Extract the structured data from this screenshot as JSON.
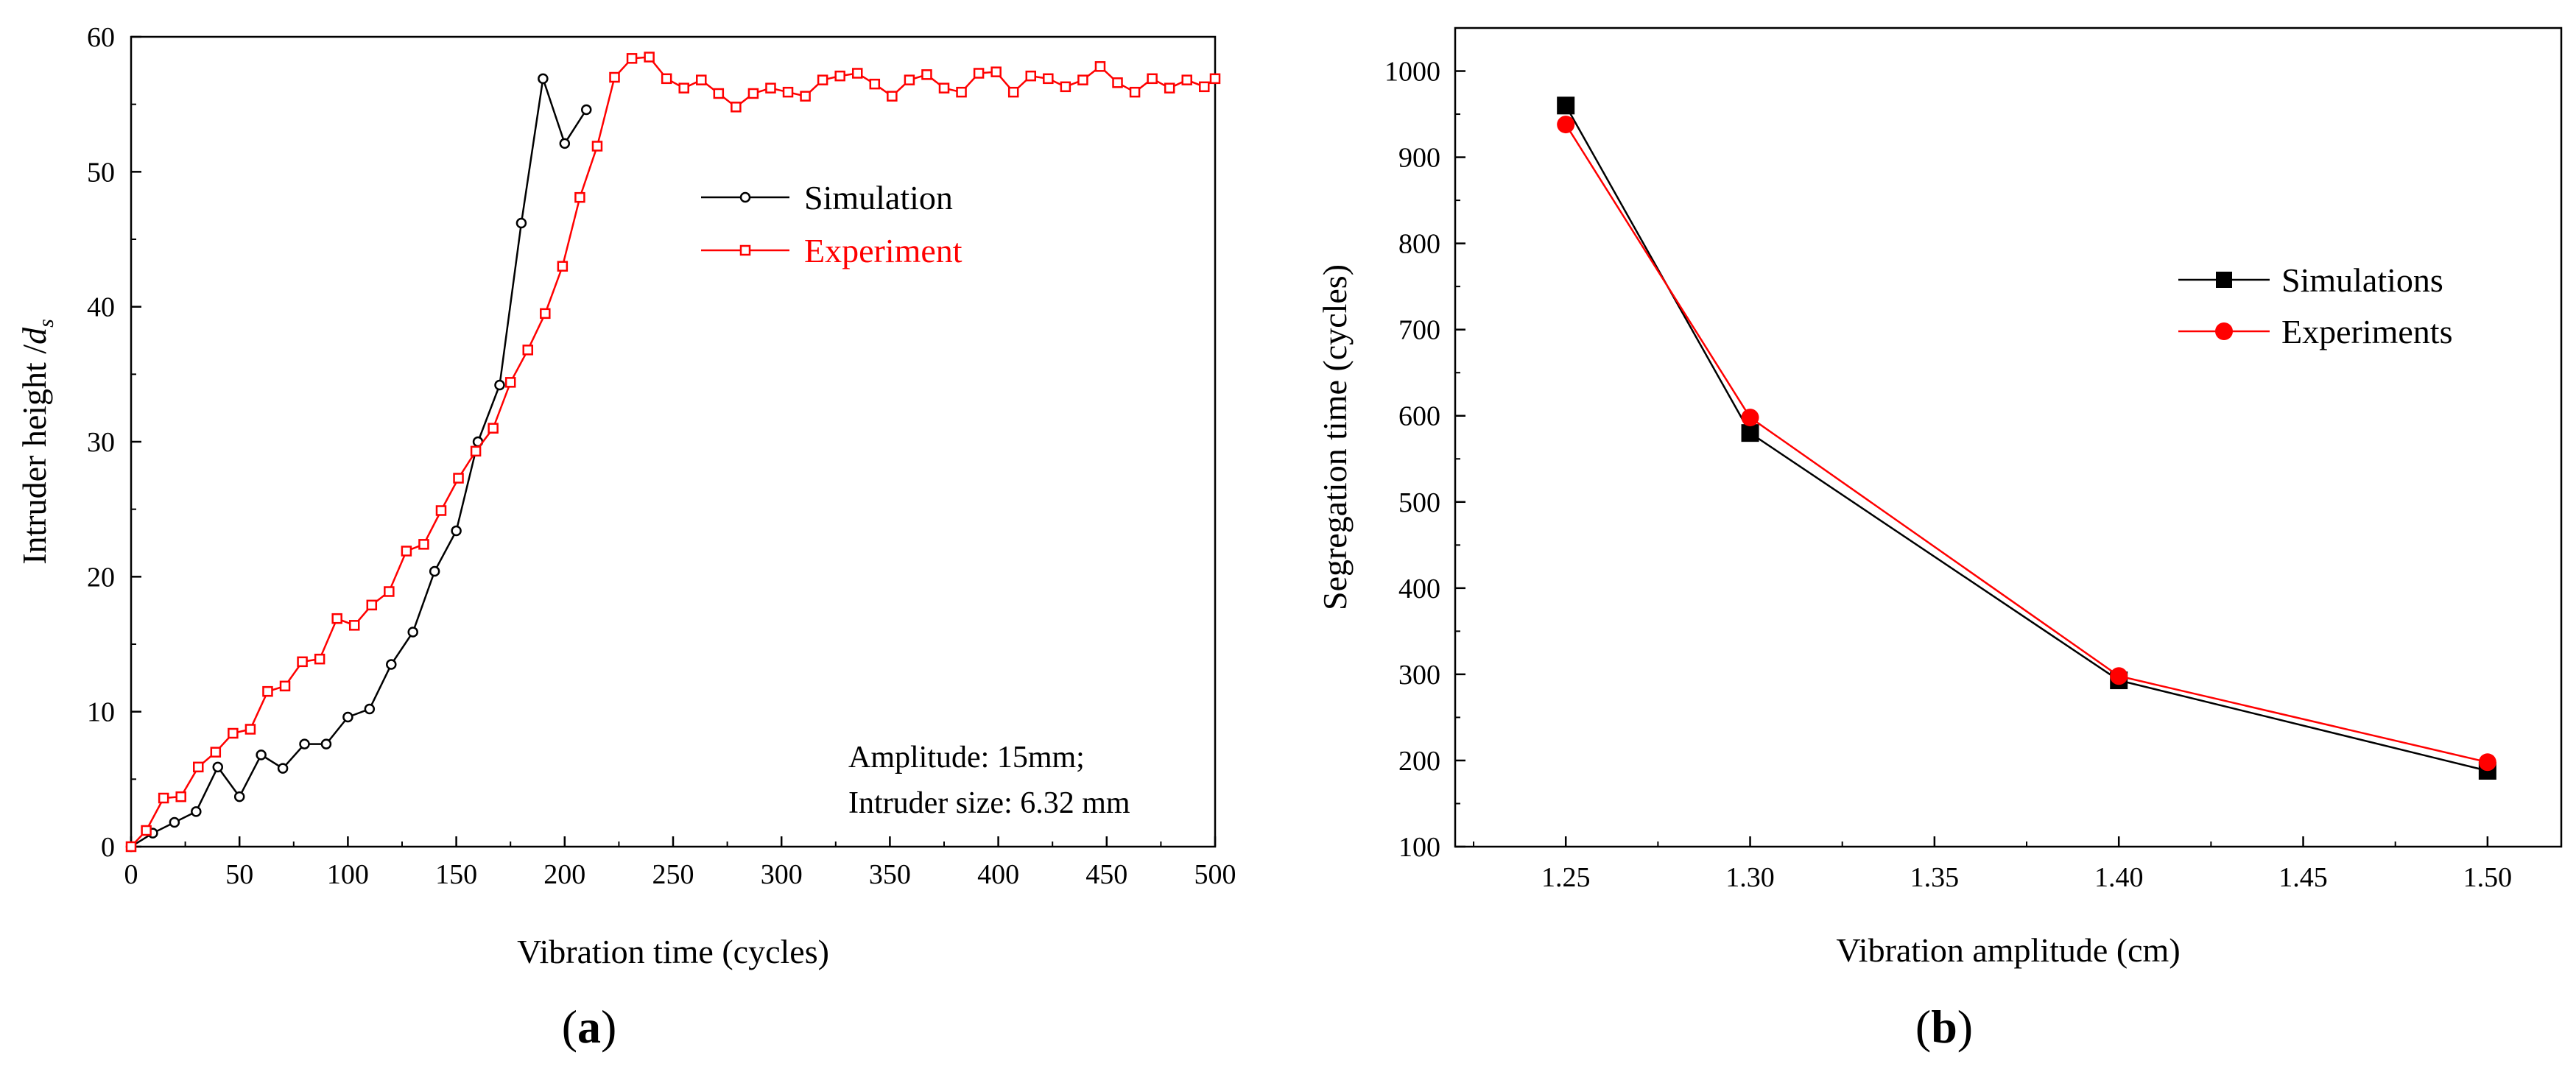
{
  "chart_data": [
    {
      "type": "line",
      "panel_label": "a",
      "xlabel": "Vibration time (cycles)",
      "ylabel": "Intruder height /",
      "ylabel_symbol": "d",
      "ylabel_subscript": "s",
      "xlim": [
        0,
        500
      ],
      "ylim": [
        0,
        60
      ],
      "xticks": [
        0,
        50,
        100,
        150,
        200,
        250,
        300,
        350,
        400,
        450,
        500
      ],
      "yticks": [
        0,
        10,
        20,
        30,
        40,
        50,
        60
      ],
      "legend_position": "upper-right",
      "annotation": [
        "Amplitude: 15mm;",
        "Intruder size: 6.32 mm"
      ],
      "series": [
        {
          "name": "Simulation",
          "color": "#000000",
          "marker": "open-circle",
          "x": [
            0,
            10,
            20,
            30,
            40,
            50,
            60,
            70,
            80,
            90,
            100,
            110,
            120,
            130,
            140,
            150,
            160,
            170,
            180,
            190,
            200,
            210
          ],
          "y": [
            0,
            1.0,
            1.8,
            2.6,
            5.9,
            3.7,
            6.8,
            5.8,
            7.6,
            7.6,
            9.6,
            10.2,
            13.5,
            15.9,
            20.4,
            23.4,
            30.0,
            34.2,
            46.2,
            56.9,
            52.1,
            54.6
          ]
        },
        {
          "name": "Experiment",
          "color": "#ff0000",
          "marker": "open-square",
          "x": [
            0,
            7,
            15,
            23,
            31,
            39,
            47,
            55,
            63,
            71,
            79,
            87,
            95,
            103,
            111,
            119,
            127,
            135,
            143,
            151,
            159,
            167,
            175,
            183,
            191,
            199,
            207,
            215,
            223,
            231,
            239,
            247,
            255,
            263,
            271,
            279,
            287,
            295,
            303,
            311,
            319,
            327,
            335,
            343,
            351,
            359,
            367,
            375,
            383,
            391,
            399,
            407,
            415,
            423,
            431,
            439,
            447,
            455,
            463,
            471,
            479,
            487,
            495,
            500
          ],
          "y": [
            0,
            1.2,
            3.6,
            3.7,
            5.9,
            7.0,
            8.4,
            8.7,
            11.5,
            11.9,
            13.7,
            13.9,
            16.9,
            16.4,
            17.9,
            18.9,
            21.9,
            22.4,
            24.9,
            27.3,
            29.3,
            31.0,
            34.4,
            36.8,
            39.5,
            43.0,
            48.1,
            51.9,
            57.0,
            58.4,
            58.5,
            56.9,
            56.2,
            56.8,
            55.8,
            54.8,
            55.8,
            56.2,
            55.9,
            55.6,
            56.8,
            57.1,
            57.3,
            56.5,
            55.6,
            56.8,
            57.2,
            56.2,
            55.9,
            57.3,
            57.4,
            55.9,
            57.1,
            56.9,
            56.3,
            56.8,
            57.8,
            56.6,
            55.9,
            56.9,
            56.2,
            56.8,
            56.3,
            56.9
          ]
        }
      ]
    },
    {
      "type": "line",
      "panel_label": "b",
      "xlabel": "Vibration amplitude (cm)",
      "ylabel": "Segregation time (cycles)",
      "xlim": [
        1.22,
        1.52
      ],
      "ylim": [
        100,
        1050
      ],
      "xticks": [
        "1.25",
        "1.30",
        "1.35",
        "1.40",
        "1.45",
        "1.50"
      ],
      "yticks": [
        100,
        200,
        300,
        400,
        500,
        600,
        700,
        800,
        900,
        1000
      ],
      "legend_position": "center-right",
      "series": [
        {
          "name": "Simulations",
          "color": "#000000",
          "marker": "filled-square",
          "x": [
            1.25,
            1.3,
            1.4,
            1.5
          ],
          "y": [
            960,
            580,
            293,
            188
          ]
        },
        {
          "name": "Experiments",
          "color": "#ff0000",
          "marker": "filled-circle",
          "x": [
            1.25,
            1.3,
            1.4,
            1.5
          ],
          "y": [
            938,
            598,
            298,
            198
          ]
        }
      ]
    }
  ]
}
